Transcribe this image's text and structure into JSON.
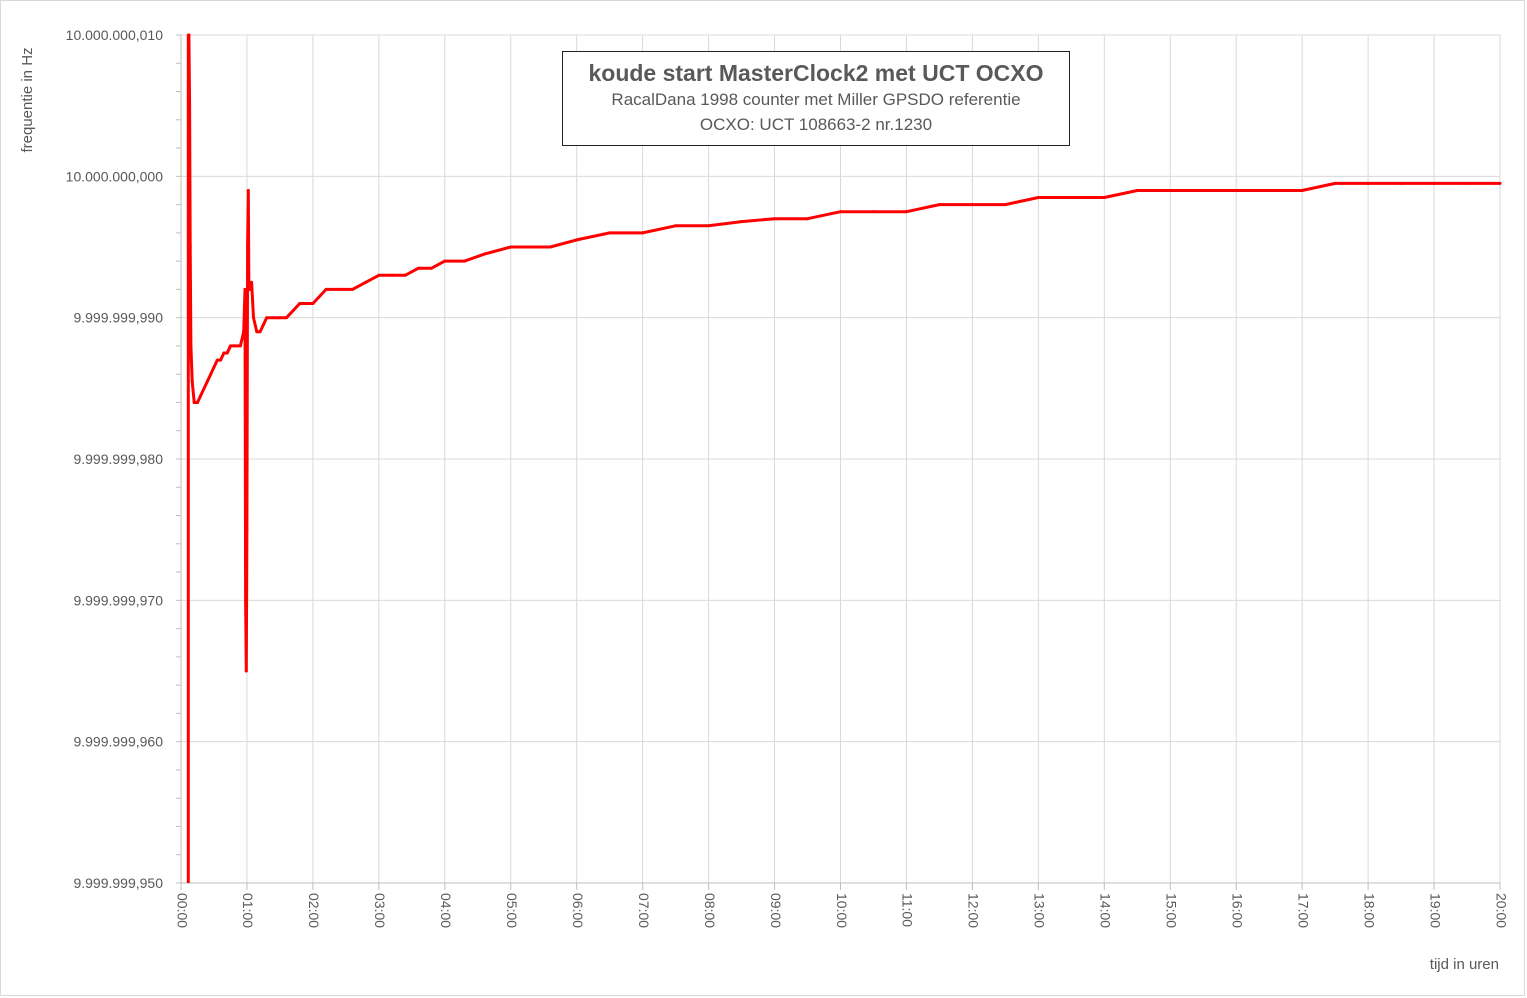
{
  "chart_data": {
    "type": "line",
    "title": "koude start MasterClock2 met UCT OCXO",
    "subtitle_lines": [
      "RacalDana 1998 counter met Miller GPSDO referentie",
      "OCXO: UCT 108663-2 nr.1230"
    ],
    "xlabel": "tijd in uren",
    "ylabel": "frequentie in Hz",
    "xlim": [
      0,
      20
    ],
    "ylim": [
      -50,
      10
    ],
    "x_tick_labels": [
      "00:00",
      "01:00",
      "02:00",
      "03:00",
      "04:00",
      "05:00",
      "06:00",
      "07:00",
      "08:00",
      "09:00",
      "10:00",
      "11:00",
      "12:00",
      "13:00",
      "14:00",
      "15:00",
      "16:00",
      "17:00",
      "18:00",
      "19:00",
      "20:00"
    ],
    "y_ticks": [
      -50,
      -40,
      -30,
      -20,
      -10,
      0,
      10
    ],
    "y_tick_labels": [
      "9.999.999,950",
      "9.999.999,960",
      "9.999.999,970",
      "9.999.999,980",
      "9.999.999,990",
      "10.000.000,000",
      "10.000.000,010"
    ],
    "y_unit_note": "y values are offsets in mHz from 10.000.000,000 Hz",
    "grid": true,
    "legend": "none",
    "series": [
      {
        "color": "#ff0000",
        "x": [
          0.12,
          0.13,
          0.14,
          0.15,
          0.17,
          0.2,
          0.25,
          0.3,
          0.35,
          0.4,
          0.45,
          0.5,
          0.55,
          0.6,
          0.65,
          0.7,
          0.75,
          0.8,
          0.85,
          0.9,
          0.95,
          0.97,
          0.98,
          0.99,
          1.0,
          1.01,
          1.02,
          1.03,
          1.05,
          1.07,
          1.1,
          1.15,
          1.2,
          1.25,
          1.3,
          1.4,
          1.5,
          1.6,
          1.7,
          1.8,
          2.0,
          2.2,
          2.4,
          2.6,
          2.8,
          3.0,
          3.2,
          3.4,
          3.6,
          3.8,
          4.0,
          4.3,
          4.6,
          5.0,
          5.3,
          5.6,
          6.0,
          6.5,
          7.0,
          7.5,
          8.0,
          8.5,
          9.0,
          9.5,
          10.0,
          10.5,
          11.0,
          11.5,
          12.0,
          12.5,
          13.0,
          13.5,
          14.0,
          14.5,
          15.0,
          15.5,
          16.0,
          16.5,
          17.0,
          17.5,
          18.0,
          18.5,
          19.0,
          19.5,
          20.0
        ],
        "y": [
          10,
          5,
          -5,
          -12,
          -14.5,
          -16,
          -16,
          -15.5,
          -15,
          -14.5,
          -14,
          -13.5,
          -13,
          -13,
          -12.5,
          -12.5,
          -12,
          -12,
          -12,
          -12,
          -11,
          -8,
          -30,
          -35,
          -25,
          -5,
          -1,
          -8,
          -8,
          -7.5,
          -10,
          -11,
          -11,
          -10.5,
          -10,
          -10,
          -10,
          -10,
          -9.5,
          -9,
          -9,
          -8,
          -8,
          -8,
          -7.5,
          -7,
          -7,
          -7,
          -6.5,
          -6.5,
          -6,
          -6,
          -5.5,
          -5,
          -5,
          -5,
          -4.5,
          -4,
          -4,
          -3.5,
          -3.5,
          -3.2,
          -3,
          -3,
          -2.5,
          -2.5,
          -2.5,
          -2,
          -2,
          -2,
          -1.5,
          -1.5,
          -1.5,
          -1,
          -1,
          -1,
          -1,
          -1,
          -1,
          -0.5,
          -0.5,
          -0.5,
          -0.5,
          -0.5,
          -0.5
        ]
      }
    ]
  }
}
